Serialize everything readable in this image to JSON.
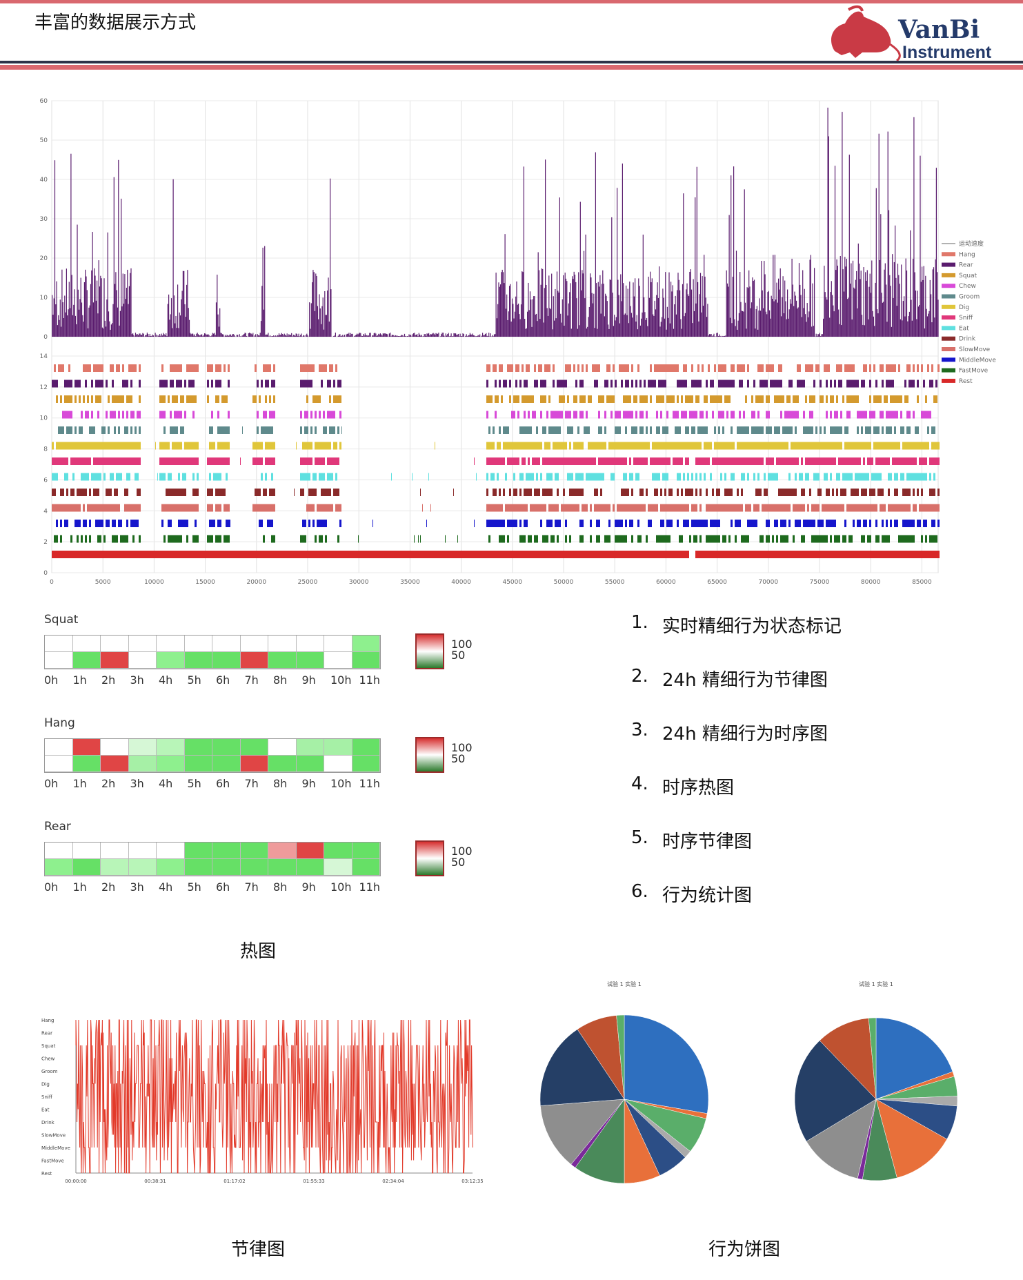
{
  "page": {
    "title": "丰富的数据展示方式",
    "logo": {
      "brand": "VanBi",
      "sub": "Instrument"
    }
  },
  "main_chart": {
    "speed_yticks": [
      "0",
      "10",
      "20",
      "30",
      "40",
      "50",
      "60"
    ],
    "behavior_yticks": [
      "0",
      "2",
      "4",
      "6",
      "8",
      "10",
      "12",
      "14"
    ],
    "xticks": [
      "0",
      "5000",
      "10000",
      "15000",
      "20000",
      "25000",
      "30000",
      "35000",
      "40000",
      "45000",
      "50000",
      "55000",
      "60000",
      "65000",
      "70000",
      "75000",
      "80000",
      "85000"
    ],
    "legend": [
      {
        "label": "运动速度",
        "color": "#999999"
      },
      {
        "label": "Hang",
        "color": "#e0786a"
      },
      {
        "label": "Rear",
        "color": "#5a1c6e"
      },
      {
        "label": "Squat",
        "color": "#d49a2e"
      },
      {
        "label": "Chew",
        "color": "#d84ad8"
      },
      {
        "label": "Groom",
        "color": "#5f8a8c"
      },
      {
        "label": "Dig",
        "color": "#e0c63a"
      },
      {
        "label": "Sniff",
        "color": "#e0387a"
      },
      {
        "label": "Eat",
        "color": "#5fe0e0"
      },
      {
        "label": "Drink",
        "color": "#8a2a2a"
      },
      {
        "label": "SlowMove",
        "color": "#d8706a"
      },
      {
        "label": "MiddleMove",
        "color": "#1616cc"
      },
      {
        "label": "FastMove",
        "color": "#1e6a1e"
      },
      {
        "label": "Rest",
        "color": "#d82828"
      }
    ]
  },
  "heatmaps": [
    {
      "title": "Squat",
      "rows": [
        [
          "#ffffff",
          "#ffffff",
          "#ffffff",
          "#ffffff",
          "#ffffff",
          "#ffffff",
          "#ffffff",
          "#ffffff",
          "#ffffff",
          "#ffffff",
          "#ffffff",
          "#8ef08e"
        ],
        [
          "#ffffff",
          "#66e066",
          "#e04545",
          "#ffffff",
          "#8ef08e",
          "#66e066",
          "#66e066",
          "#e04545",
          "#66e066",
          "#66e066",
          "#ffffff",
          "#66e066"
        ]
      ]
    },
    {
      "title": "Hang",
      "rows": [
        [
          "#ffffff",
          "#e04545",
          "#ffffff",
          "#d6f7d6",
          "#b8f5b8",
          "#66e066",
          "#66e066",
          "#66e066",
          "#ffffff",
          "#a6f0a6",
          "#a6f0a6",
          "#66e066"
        ],
        [
          "#ffffff",
          "#66e066",
          "#e04545",
          "#a6f0a6",
          "#8ef08e",
          "#66e066",
          "#66e066",
          "#e04545",
          "#66e066",
          "#66e066",
          "#ffffff",
          "#66e066"
        ]
      ]
    },
    {
      "title": "Rear",
      "rows": [
        [
          "#ffffff",
          "#ffffff",
          "#ffffff",
          "#ffffff",
          "#ffffff",
          "#66e066",
          "#66e066",
          "#66e066",
          "#ef9b9b",
          "#e04545",
          "#66e066",
          "#66e066"
        ],
        [
          "#8ef08e",
          "#66e066",
          "#b8f5b8",
          "#b8f5b8",
          "#8ef08e",
          "#66e066",
          "#66e066",
          "#66e066",
          "#66e066",
          "#66e066",
          "#d6f7d6",
          "#66e066"
        ]
      ]
    }
  ],
  "heat_hour_labels": [
    "0h",
    "1h",
    "2h",
    "3h",
    "4h",
    "5h",
    "6h",
    "7h",
    "8h",
    "9h",
    "10h",
    "11h"
  ],
  "heat_legend": {
    "high": "100",
    "mid": "50"
  },
  "features": [
    {
      "num": "1.",
      "text": "实时精细行为状态标记"
    },
    {
      "num": "2.",
      "text": "24h 精细行为节律图"
    },
    {
      "num": "3.",
      "text": "24h 精细行为时序图"
    },
    {
      "num": "4.",
      "text": "时序热图"
    },
    {
      "num": "5.",
      "text": "时序节律图"
    },
    {
      "num": "6.",
      "text": "行为统计图"
    }
  ],
  "captions": {
    "heatmap": "热图",
    "rhythm": "节律图",
    "pie": "行为饼图"
  },
  "rhythm_chart": {
    "yticks": [
      "Hang",
      "Rear",
      "Squat",
      "Chew",
      "Groom",
      "Dig",
      "Sniff",
      "Eat",
      "Drink",
      "SlowMove",
      "MiddleMove",
      "FastMove",
      "Rest"
    ],
    "xticks": [
      "00:00:00",
      "00:38:31",
      "01:17:02",
      "01:55:33",
      "02:34:04",
      "03:12:35"
    ]
  },
  "pie_charts": [
    {
      "title": "试验 1 实验 1",
      "slices": [
        {
          "value": 28,
          "color": "#2e6fbf"
        },
        {
          "value": 1,
          "color": "#e8703a"
        },
        {
          "value": 7,
          "color": "#5aae6a"
        },
        {
          "value": 1.5,
          "color": "#aaaaaa"
        },
        {
          "value": 6,
          "color": "#2c4e86"
        },
        {
          "value": 7,
          "color": "#e8703a"
        },
        {
          "value": 10,
          "color": "#4a8a5a"
        },
        {
          "value": 1,
          "color": "#7a2a9a"
        },
        {
          "value": 13,
          "color": "#8e8e8e"
        },
        {
          "value": 17,
          "color": "#253f66"
        },
        {
          "value": 8,
          "color": "#bf5230"
        },
        {
          "value": 1.5,
          "color": "#5aae6a"
        }
      ]
    },
    {
      "title": "试验 1 实验 1",
      "slices": [
        {
          "value": 20,
          "color": "#2e6fbf"
        },
        {
          "value": 1,
          "color": "#e8703a"
        },
        {
          "value": 4,
          "color": "#5aae6a"
        },
        {
          "value": 2,
          "color": "#aaaaaa"
        },
        {
          "value": 7,
          "color": "#2c4e86"
        },
        {
          "value": 13,
          "color": "#e8703a"
        },
        {
          "value": 7,
          "color": "#4a8a5a"
        },
        {
          "value": 1,
          "color": "#7a2a9a"
        },
        {
          "value": 13,
          "color": "#8e8e8e"
        },
        {
          "value": 22,
          "color": "#253f66"
        },
        {
          "value": 11,
          "color": "#bf5230"
        },
        {
          "value": 1.5,
          "color": "#5aae6a"
        }
      ]
    }
  ]
}
